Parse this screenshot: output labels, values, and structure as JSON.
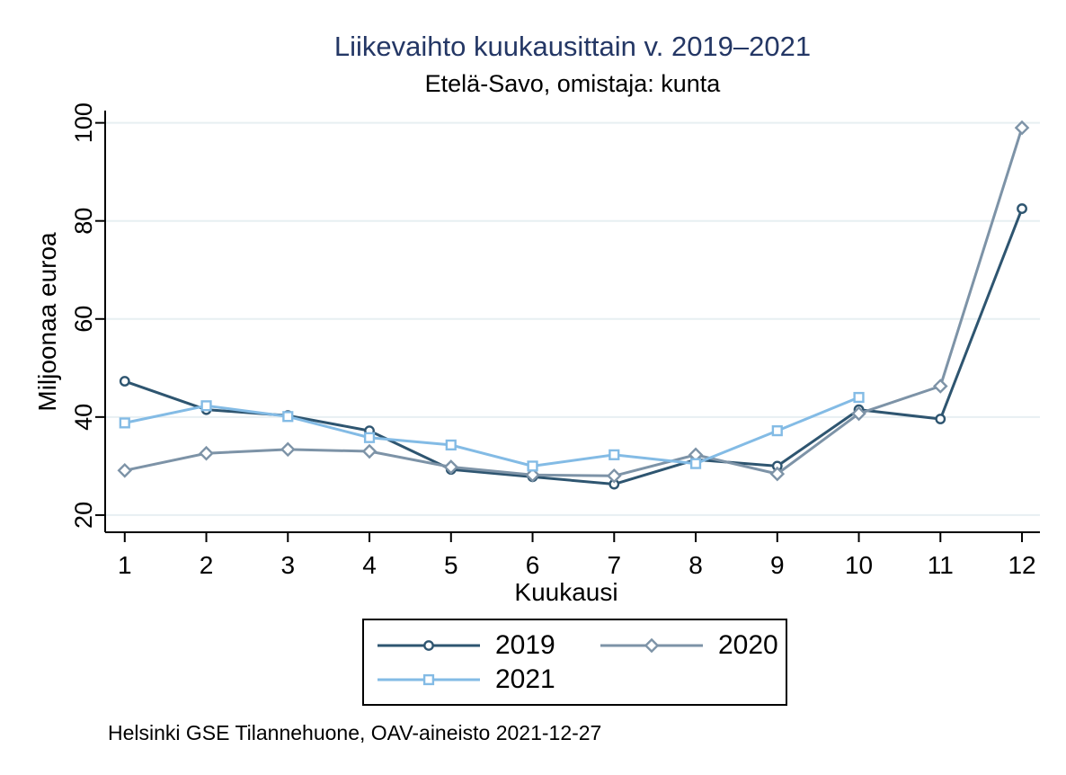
{
  "chart_data": {
    "type": "line",
    "title": "Liikevaihto kuukausittain v. 2019–2021",
    "subtitle": "Etelä-Savo, omistaja: kunta",
    "xlabel": "Kuukausi",
    "ylabel": "Miljoonaa euroa",
    "note": "Helsinki GSE Tilannehuone, OAV-aineisto 2021-12-27",
    "x": [
      1,
      2,
      3,
      4,
      5,
      6,
      7,
      8,
      9,
      10,
      11,
      12
    ],
    "x_ticks": [
      1,
      2,
      3,
      4,
      5,
      6,
      7,
      8,
      9,
      10,
      11,
      12
    ],
    "y_ticks": [
      20,
      40,
      60,
      80,
      100
    ],
    "xlim": [
      0.76,
      12.22
    ],
    "ylim": [
      16.5,
      102.5
    ],
    "grid": "horizontal",
    "legend_position": "bottom-center",
    "series": [
      {
        "name": "2019",
        "marker": "circle",
        "color": "#2e5570",
        "values": [
          47.3,
          41.5,
          40.3,
          37.2,
          29.3,
          27.8,
          26.3,
          31.3,
          30.0,
          41.5,
          39.6,
          82.5
        ]
      },
      {
        "name": "2020",
        "marker": "diamond",
        "color": "#7d93a7",
        "values": [
          29.1,
          32.6,
          33.4,
          33.0,
          29.8,
          28.2,
          28.0,
          32.3,
          28.4,
          40.7,
          46.3,
          99.0
        ]
      },
      {
        "name": "2021",
        "marker": "square",
        "color": "#83bbe5",
        "values": [
          38.8,
          42.3,
          40.1,
          35.8,
          34.3,
          30.0,
          32.3,
          30.5,
          37.2,
          44.0,
          null,
          null
        ]
      }
    ]
  },
  "colors": {
    "title": "#243765",
    "text": "#000000",
    "axis": "#000000",
    "grid": "#e7eff2",
    "background": "#ffffff",
    "marker_fill": "#ffffff"
  }
}
